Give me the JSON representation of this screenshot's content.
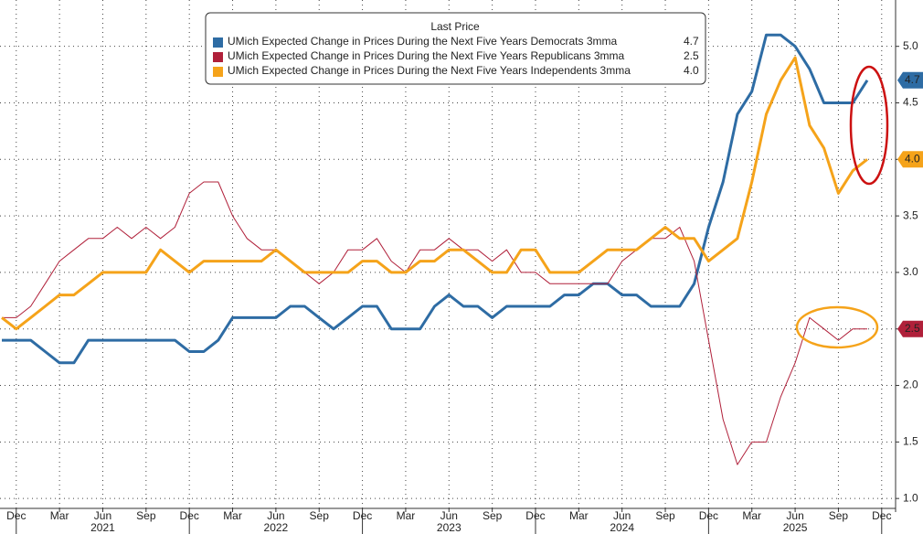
{
  "chart_data": {
    "type": "line",
    "legend_title": "Last Price",
    "x": [
      "2020-11",
      "2020-12",
      "2021-01",
      "2021-02",
      "2021-03",
      "2021-04",
      "2021-05",
      "2021-06",
      "2021-07",
      "2021-08",
      "2021-09",
      "2021-10",
      "2021-11",
      "2021-12",
      "2022-01",
      "2022-02",
      "2022-03",
      "2022-04",
      "2022-05",
      "2022-06",
      "2022-07",
      "2022-08",
      "2022-09",
      "2022-10",
      "2022-11",
      "2022-12",
      "2023-01",
      "2023-02",
      "2023-03",
      "2023-04",
      "2023-05",
      "2023-06",
      "2023-07",
      "2023-08",
      "2023-09",
      "2023-10",
      "2023-11",
      "2023-12",
      "2024-01",
      "2024-02",
      "2024-03",
      "2024-04",
      "2024-05",
      "2024-06",
      "2024-07",
      "2024-08",
      "2024-09",
      "2024-10",
      "2024-11",
      "2024-12",
      "2025-01",
      "2025-02",
      "2025-03",
      "2025-04",
      "2025-05",
      "2025-06",
      "2025-07",
      "2025-08",
      "2025-09",
      "2025-10",
      "2025-11"
    ],
    "series": [
      {
        "name": "UMich Expected Change in Prices During the Next Five Years Democrats 3mma",
        "color": "#2e6ca4",
        "line_width": 3,
        "tag_text_color": "#ffffff",
        "last_label": "4.7",
        "values": [
          2.4,
          2.4,
          2.4,
          2.3,
          2.2,
          2.2,
          2.4,
          2.4,
          2.4,
          2.4,
          2.4,
          2.4,
          2.4,
          2.3,
          2.3,
          2.4,
          2.6,
          2.6,
          2.6,
          2.6,
          2.7,
          2.7,
          2.6,
          2.5,
          2.6,
          2.7,
          2.7,
          2.5,
          2.5,
          2.5,
          2.7,
          2.8,
          2.7,
          2.7,
          2.6,
          2.7,
          2.7,
          2.7,
          2.7,
          2.8,
          2.8,
          2.9,
          2.9,
          2.8,
          2.8,
          2.7,
          2.7,
          2.7,
          2.9,
          3.4,
          3.8,
          4.4,
          4.6,
          5.1,
          5.1,
          5.0,
          4.8,
          4.5,
          4.5,
          4.5,
          4.7
        ]
      },
      {
        "name": "UMich Expected Change in Prices During the Next Five Years Republicans 3mma",
        "color": "#b0203a",
        "line_width": 1,
        "tag_text_color": "#ffffff",
        "last_label": "2.5",
        "values": [
          2.6,
          2.6,
          2.7,
          2.9,
          3.1,
          3.2,
          3.3,
          3.3,
          3.4,
          3.3,
          3.4,
          3.3,
          3.4,
          3.7,
          3.8,
          3.8,
          3.5,
          3.3,
          3.2,
          3.2,
          3.1,
          3.0,
          2.9,
          3.0,
          3.2,
          3.2,
          3.3,
          3.1,
          3.0,
          3.2,
          3.2,
          3.3,
          3.2,
          3.2,
          3.1,
          3.2,
          3.0,
          3.0,
          2.9,
          2.9,
          2.9,
          2.9,
          2.9,
          3.1,
          3.2,
          3.3,
          3.3,
          3.4,
          3.1,
          2.4,
          1.7,
          1.3,
          1.5,
          1.5,
          1.9,
          2.2,
          2.6,
          2.5,
          2.4,
          2.5,
          2.5
        ]
      },
      {
        "name": "UMich Expected Change in Prices During the Next Five Years Independents 3mma",
        "color": "#f5a31a",
        "line_width": 3,
        "tag_text_color": "#222222",
        "last_label": "4.0",
        "values": [
          2.6,
          2.5,
          2.6,
          2.7,
          2.8,
          2.8,
          2.9,
          3.0,
          3.0,
          3.0,
          3.0,
          3.2,
          3.1,
          3.0,
          3.1,
          3.1,
          3.1,
          3.1,
          3.1,
          3.2,
          3.1,
          3.0,
          3.0,
          3.0,
          3.0,
          3.1,
          3.1,
          3.0,
          3.0,
          3.1,
          3.1,
          3.2,
          3.2,
          3.1,
          3.0,
          3.0,
          3.2,
          3.2,
          3.0,
          3.0,
          3.0,
          3.1,
          3.2,
          3.2,
          3.2,
          3.3,
          3.4,
          3.3,
          3.3,
          3.1,
          3.2,
          3.3,
          3.8,
          4.4,
          4.7,
          4.9,
          4.3,
          4.1,
          3.7,
          3.9,
          4.0
        ]
      }
    ],
    "xticks": [
      {
        "value": "2020-12",
        "label": "Dec"
      },
      {
        "value": "2021-03",
        "label": "Mar"
      },
      {
        "value": "2021-06",
        "label": "Jun"
      },
      {
        "value": "2021-09",
        "label": "Sep"
      },
      {
        "value": "2021-12",
        "label": "Dec"
      },
      {
        "value": "2022-03",
        "label": "Mar"
      },
      {
        "value": "2022-06",
        "label": "Jun"
      },
      {
        "value": "2022-09",
        "label": "Sep"
      },
      {
        "value": "2022-12",
        "label": "Dec"
      },
      {
        "value": "2023-03",
        "label": "Mar"
      },
      {
        "value": "2023-06",
        "label": "Jun"
      },
      {
        "value": "2023-09",
        "label": "Sep"
      },
      {
        "value": "2023-12",
        "label": "Dec"
      },
      {
        "value": "2024-03",
        "label": "Mar"
      },
      {
        "value": "2024-06",
        "label": "Jun"
      },
      {
        "value": "2024-09",
        "label": "Sep"
      },
      {
        "value": "2024-12",
        "label": "Dec"
      },
      {
        "value": "2025-03",
        "label": "Mar"
      },
      {
        "value": "2025-06",
        "label": "Jun"
      },
      {
        "value": "2025-09",
        "label": "Sep"
      },
      {
        "value": "2025-12",
        "label": "Dec"
      }
    ],
    "year_labels": [
      {
        "value": "2021-06",
        "label": "2021"
      },
      {
        "value": "2022-06",
        "label": "2022"
      },
      {
        "value": "2023-06",
        "label": "2023"
      },
      {
        "value": "2024-06",
        "label": "2024"
      },
      {
        "value": "2025-06",
        "label": "2025"
      }
    ],
    "ylim": [
      0.88,
      5.41
    ],
    "yticks": [
      {
        "value": 1,
        "label": "1.0"
      },
      1.5,
      {
        "value": 2,
        "label": "2.0"
      },
      2.5,
      {
        "value": 3,
        "label": "3.0"
      },
      3.5,
      {
        "value": 4,
        "label": "4.0"
      },
      4.5,
      {
        "value": 5,
        "label": "5.0"
      }
    ],
    "grid": true
  }
}
